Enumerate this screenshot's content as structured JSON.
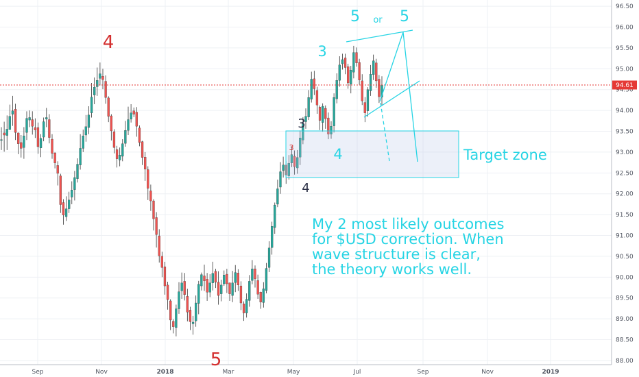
{
  "chart_data": {
    "type": "candlestick",
    "instrument": "$USD",
    "y_axis": {
      "position": "right",
      "range": [
        87.9,
        96.65
      ],
      "ticks": [
        "96.50",
        "96.00",
        "95.50",
        "95.00",
        "94.50",
        "94.00",
        "93.50",
        "93.00",
        "92.50",
        "92.00",
        "91.50",
        "91.00",
        "90.50",
        "90.00",
        "89.50",
        "89.00",
        "88.50",
        "88.00"
      ]
    },
    "x_axis": {
      "labels": [
        "Sep",
        "Nov",
        "2018",
        "Mar",
        "May",
        "Jul",
        "Sep",
        "Nov",
        "2019"
      ]
    },
    "last_price": {
      "value": 94.61,
      "label": "94.61",
      "color": "#e53935"
    },
    "colors": {
      "up": "#26a69a",
      "down": "#ef5350",
      "wick": "#333333",
      "annotation": "#26d4e4",
      "wave_red": "#d32f2f"
    },
    "grid": true,
    "candles": [
      [
        93.28,
        93.3,
        93.6,
        93.05
      ],
      [
        93.46,
        93.41,
        93.73,
        93.01
      ],
      [
        93.4,
        93.55,
        93.88,
        93.05
      ],
      [
        93.54,
        93.86,
        94.14,
        93.54
      ],
      [
        93.91,
        93.99,
        94.35,
        93.63
      ],
      [
        94.03,
        93.47,
        94.16,
        93.29
      ],
      [
        93.46,
        93.2,
        93.47,
        92.95
      ],
      [
        93.23,
        93.09,
        93.41,
        92.87
      ],
      [
        93.11,
        93.39,
        93.6,
        92.84
      ],
      [
        93.47,
        93.81,
        93.98,
        93.29
      ],
      [
        93.77,
        93.83,
        94.0,
        93.6
      ],
      [
        93.78,
        93.62,
        93.98,
        93.42
      ],
      [
        93.59,
        93.53,
        93.81,
        93.34
      ],
      [
        93.59,
        93.13,
        93.71,
        92.96
      ],
      [
        93.1,
        93.33,
        93.43,
        92.88
      ],
      [
        93.36,
        93.73,
        93.83,
        93.26
      ],
      [
        93.79,
        93.83,
        94.06,
        93.6
      ],
      [
        93.78,
        93.35,
        93.91,
        93.21
      ],
      [
        93.31,
        92.97,
        93.43,
        92.84
      ],
      [
        92.98,
        92.74,
        93.0,
        92.61
      ],
      [
        92.68,
        92.49,
        92.78,
        92.2
      ],
      [
        92.43,
        91.74,
        92.48,
        91.54
      ],
      [
        91.79,
        91.49,
        91.87,
        91.26
      ],
      [
        91.45,
        91.64,
        91.94,
        91.35
      ],
      [
        91.64,
        91.85,
        92.05,
        91.54
      ],
      [
        91.92,
        92.09,
        92.3,
        91.75
      ],
      [
        92.1,
        92.39,
        92.55,
        91.84
      ],
      [
        92.36,
        92.71,
        92.85,
        92.27
      ],
      [
        92.69,
        93.09,
        93.43,
        92.58
      ],
      [
        93.09,
        93.39,
        93.54,
        93.0
      ],
      [
        93.41,
        93.61,
        93.89,
        93.25
      ],
      [
        93.59,
        93.89,
        94.1,
        93.43
      ],
      [
        93.94,
        94.32,
        94.66,
        93.83
      ],
      [
        94.37,
        94.56,
        94.79,
        94.15
      ],
      [
        94.57,
        94.72,
        95.03,
        94.35
      ],
      [
        94.77,
        94.88,
        95.15,
        94.6
      ],
      [
        94.82,
        94.74,
        95.0,
        94.51
      ],
      [
        94.7,
        94.31,
        94.84,
        94.16
      ],
      [
        94.3,
        93.86,
        94.34,
        93.72
      ],
      [
        93.87,
        93.51,
        93.91,
        93.28
      ],
      [
        93.49,
        93.11,
        93.55,
        92.97
      ],
      [
        93.06,
        92.84,
        93.15,
        92.63
      ],
      [
        92.81,
        92.93,
        93.11,
        92.66
      ],
      [
        92.9,
        93.2,
        93.31,
        92.78
      ],
      [
        93.21,
        93.52,
        93.75,
        93.13
      ],
      [
        93.52,
        93.78,
        94.09,
        93.41
      ],
      [
        93.79,
        93.94,
        94.15,
        93.71
      ],
      [
        93.99,
        93.91,
        94.07,
        93.84
      ],
      [
        93.96,
        93.62,
        94.08,
        93.37
      ],
      [
        93.58,
        93.23,
        93.64,
        93.14
      ],
      [
        93.25,
        92.87,
        93.27,
        92.69
      ],
      [
        92.88,
        92.59,
        93.0,
        92.31
      ],
      [
        92.58,
        92.13,
        92.66,
        91.85
      ],
      [
        92.07,
        91.83,
        92.22,
        91.59
      ],
      [
        91.83,
        91.4,
        91.87,
        91.12
      ],
      [
        91.43,
        91.02,
        91.56,
        90.71
      ],
      [
        90.99,
        90.51,
        91.15,
        90.35
      ],
      [
        90.5,
        90.23,
        90.61,
        90.0
      ],
      [
        90.25,
        89.79,
        90.37,
        89.58
      ],
      [
        89.81,
        89.46,
        89.89,
        89.22
      ],
      [
        89.43,
        88.97,
        89.47,
        88.73
      ],
      [
        88.94,
        88.81,
        88.99,
        88.65
      ],
      [
        88.79,
        89.24,
        89.34,
        88.58
      ],
      [
        89.24,
        89.65,
        89.88,
        89.12
      ],
      [
        89.67,
        89.86,
        90.11,
        89.48
      ],
      [
        89.9,
        89.58,
        90.1,
        89.44
      ],
      [
        89.54,
        89.16,
        89.72,
        88.94
      ],
      [
        89.21,
        88.93,
        89.29,
        88.73
      ],
      [
        88.88,
        88.92,
        89.07,
        88.62
      ],
      [
        88.95,
        89.38,
        89.56,
        88.81
      ],
      [
        89.37,
        89.83,
        89.91,
        89.11
      ],
      [
        89.79,
        90.06,
        90.11,
        89.68
      ],
      [
        90.03,
        89.91,
        90.3,
        89.67
      ],
      [
        89.95,
        89.64,
        90.1,
        89.43
      ],
      [
        89.64,
        89.86,
        90.07,
        89.52
      ],
      [
        89.86,
        90.09,
        90.37,
        89.68
      ],
      [
        90.14,
        89.88,
        90.2,
        89.74
      ],
      [
        89.88,
        89.56,
        90.14,
        89.34
      ],
      [
        89.6,
        89.81,
        89.94,
        89.42
      ],
      [
        89.84,
        90.05,
        90.16,
        89.79
      ],
      [
        90.07,
        89.84,
        90.2,
        89.62
      ],
      [
        89.86,
        89.6,
        89.87,
        89.43
      ],
      [
        89.56,
        89.86,
        90.15,
        89.4
      ],
      [
        89.87,
        90.11,
        90.29,
        89.64
      ],
      [
        90.1,
        89.81,
        90.19,
        89.67
      ],
      [
        89.79,
        89.38,
        89.9,
        89.21
      ],
      [
        89.36,
        89.14,
        89.42,
        88.95
      ],
      [
        89.14,
        89.47,
        89.61,
        89.03
      ],
      [
        89.44,
        89.9,
        90.05,
        89.29
      ],
      [
        89.92,
        90.2,
        90.41,
        89.83
      ],
      [
        90.2,
        89.96,
        90.28,
        89.75
      ],
      [
        89.92,
        89.59,
        90.06,
        89.48
      ],
      [
        89.64,
        89.4,
        89.65,
        89.24
      ],
      [
        89.39,
        89.72,
        89.88,
        89.27
      ],
      [
        89.68,
        90.21,
        90.34,
        89.61
      ],
      [
        90.23,
        90.7,
        90.86,
        90.12
      ],
      [
        90.71,
        91.22,
        91.33,
        90.54
      ],
      [
        91.19,
        91.73,
        91.79,
        91.04
      ],
      [
        91.75,
        92.12,
        92.34,
        91.68
      ],
      [
        92.16,
        92.53,
        92.76,
        92.0
      ],
      [
        92.56,
        92.69,
        92.89,
        92.39
      ],
      [
        92.69,
        92.45,
        92.79,
        92.24
      ],
      [
        92.43,
        92.73,
        92.93,
        92.34
      ],
      [
        92.74,
        92.94,
        93.14,
        92.64
      ],
      [
        92.9,
        92.65,
        93.04,
        92.46
      ],
      [
        92.62,
        92.87,
        93.05,
        92.48
      ],
      [
        92.88,
        93.34,
        93.52,
        92.69
      ],
      [
        93.29,
        93.68,
        93.84,
        93.19
      ],
      [
        93.73,
        93.86,
        94.05,
        93.56
      ],
      [
        93.84,
        94.31,
        94.49,
        93.77
      ],
      [
        94.27,
        94.75,
        94.93,
        94.19
      ],
      [
        94.76,
        94.52,
        94.95,
        94.37
      ],
      [
        94.48,
        94.13,
        94.57,
        93.92
      ],
      [
        94.08,
        93.76,
        94.12,
        93.53
      ],
      [
        93.71,
        94.1,
        94.17,
        93.49
      ],
      [
        94.05,
        93.8,
        94.12,
        93.56
      ],
      [
        93.82,
        93.43,
        93.95,
        93.31
      ],
      [
        93.43,
        93.62,
        93.74,
        93.32
      ],
      [
        93.63,
        94.31,
        94.41,
        93.47
      ],
      [
        94.28,
        94.72,
        94.89,
        94.17
      ],
      [
        94.72,
        95.09,
        95.3,
        94.57
      ],
      [
        95.12,
        95.22,
        95.36,
        94.98
      ],
      [
        95.26,
        95.03,
        95.36,
        94.87
      ],
      [
        95.05,
        94.66,
        95.12,
        94.52
      ],
      [
        94.63,
        94.97,
        95.07,
        94.41
      ],
      [
        94.92,
        95.39,
        95.55,
        94.77
      ],
      [
        95.39,
        95.14,
        95.51,
        95.05
      ],
      [
        95.15,
        94.73,
        95.24,
        94.62
      ],
      [
        94.71,
        94.23,
        94.87,
        94.13
      ],
      [
        94.19,
        93.94,
        94.32,
        93.72
      ],
      [
        93.99,
        94.5,
        94.56,
        93.85
      ],
      [
        94.47,
        94.87,
        95.09,
        94.35
      ],
      [
        94.86,
        95.19,
        95.34,
        94.73
      ],
      [
        95.14,
        94.71,
        95.24,
        94.54
      ],
      [
        94.75,
        94.33,
        94.85,
        94.18
      ],
      [
        94.32,
        94.61,
        94.82,
        94.13
      ]
    ]
  },
  "annotations": {
    "wave_labels_red": [
      {
        "id": "4-top",
        "text": "4"
      },
      {
        "id": "5-bottom",
        "text": "5"
      },
      {
        "id": "3-small",
        "text": "3"
      }
    ],
    "wave_labels_cyan": [
      {
        "id": "3",
        "text": "3"
      },
      {
        "id": "4",
        "text": "4"
      },
      {
        "id": "5a",
        "text": "5"
      },
      {
        "id": "or",
        "text": "or"
      },
      {
        "id": "5b",
        "text": "5"
      }
    ],
    "wave_labels_dark": [
      {
        "id": "3",
        "text": "3"
      },
      {
        "id": "4",
        "text": "4"
      }
    ],
    "target_zone_label": "Target zone",
    "note_lines": [
      "My 2 most likely outcomes",
      "for $USD correction. When",
      "wave structure is clear,",
      "the theory works well."
    ]
  }
}
